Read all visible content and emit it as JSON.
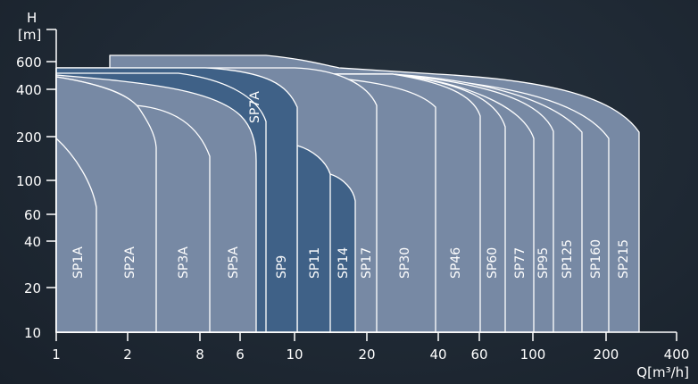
{
  "chart_data": {
    "type": "area",
    "ylabel_lines": [
      "H",
      "[m]"
    ],
    "xlabel": "Q[m³/h]",
    "ylim": [
      10,
      700
    ],
    "xlim": [
      1,
      400
    ],
    "y_scale": "log",
    "x_scale": "log",
    "y_tick_labels": [
      "600",
      "400",
      "200",
      "100",
      "60",
      "40",
      "20",
      "10"
    ],
    "x_tick_labels": [
      "1",
      "2",
      "8",
      "6",
      "10",
      "20",
      "40",
      "60",
      "100",
      "200",
      "400"
    ],
    "colors": {
      "light": "#7789a4",
      "dark": "#3f6187",
      "edge": "#ffffff"
    },
    "series": [
      {
        "name": "SP1A",
        "shade": "light"
      },
      {
        "name": "SP2A",
        "shade": "light"
      },
      {
        "name": "SP3A",
        "shade": "light"
      },
      {
        "name": "SP5A",
        "shade": "light"
      },
      {
        "name": "SP7A",
        "shade": "dark"
      },
      {
        "name": "SP9",
        "shade": "dark"
      },
      {
        "name": "SP11",
        "shade": "dark"
      },
      {
        "name": "SP14",
        "shade": "dark"
      },
      {
        "name": "SP17",
        "shade": "light"
      },
      {
        "name": "SP30",
        "shade": "light"
      },
      {
        "name": "SP46",
        "shade": "light"
      },
      {
        "name": "SP60",
        "shade": "light"
      },
      {
        "name": "SP77",
        "shade": "light"
      },
      {
        "name": "SP95",
        "shade": "light"
      },
      {
        "name": "SP125",
        "shade": "light"
      },
      {
        "name": "SP160",
        "shade": "light"
      },
      {
        "name": "SP215",
        "shade": "light"
      }
    ]
  }
}
